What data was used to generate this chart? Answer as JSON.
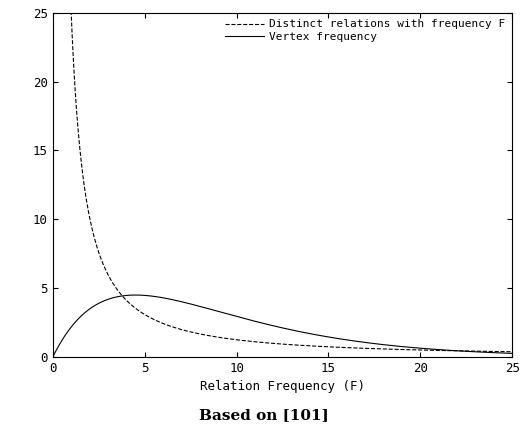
{
  "xlabel": "Relation Frequency (F)",
  "caption": "Based on [101]",
  "xlim": [
    0,
    25
  ],
  "ylim": [
    0,
    25
  ],
  "xticks": [
    0,
    5,
    10,
    15,
    20,
    25
  ],
  "yticks": [
    0,
    5,
    10,
    15,
    20,
    25
  ],
  "legend_entries": [
    "Distinct relations with frequency F",
    "Vertex frequency"
  ],
  "line_color": "black",
  "background_color": "white",
  "figsize": [
    5.28,
    4.25
  ],
  "dpi": 100,
  "distinct_C": 25.0,
  "distinct_alpha": 1.3,
  "vertex_peak_x": 4.5,
  "vertex_peak_y": 4.5,
  "vertex_decay": 2.8
}
